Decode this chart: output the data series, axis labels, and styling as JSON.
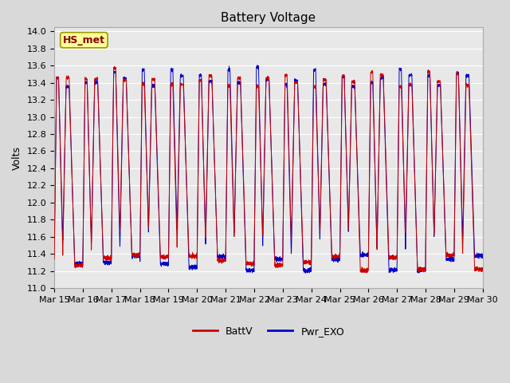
{
  "title": "Battery Voltage",
  "ylabel": "Volts",
  "xlabel": "",
  "ylim": [
    11.0,
    14.0
  ],
  "yticks": [
    11.0,
    11.2,
    11.4,
    11.6,
    11.8,
    12.0,
    12.2,
    12.4,
    12.6,
    12.8,
    13.0,
    13.2,
    13.4,
    13.6,
    13.8,
    14.0
  ],
  "xtick_labels": [
    "Mar 15",
    "Mar 16",
    "Mar 17",
    "Mar 18",
    "Mar 19",
    "Mar 20",
    "Mar 21",
    "Mar 22",
    "Mar 23",
    "Mar 24",
    "Mar 25",
    "Mar 26",
    "Mar 27",
    "Mar 28",
    "Mar 29",
    "Mar 30"
  ],
  "batt_color": "#cc0000",
  "pwr_color": "#0000cc",
  "fig_bg_color": "#d9d9d9",
  "plot_bg_color": "#e8e8e8",
  "legend_labels": [
    "BattV",
    "Pwr_EXO"
  ],
  "annotation_text": "HS_met",
  "annotation_color": "#8b0000",
  "annotation_bg": "#ffff99",
  "annotation_border": "#999900",
  "title_fontsize": 11,
  "axis_fontsize": 9,
  "tick_fontsize": 8,
  "legend_fontsize": 9
}
